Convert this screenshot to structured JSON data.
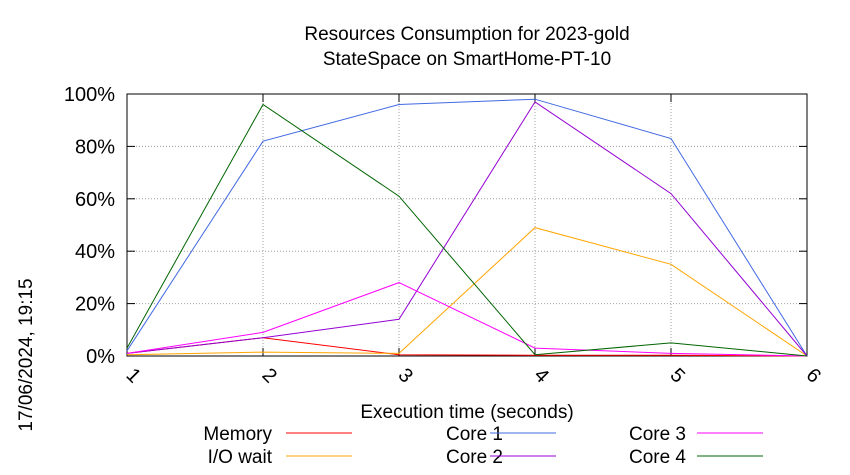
{
  "chart_data": {
    "type": "line",
    "title_lines": [
      "Resources Consumption for 2023-gold",
      "StateSpace on SmartHome-PT-10"
    ],
    "xlabel": "Execution time (seconds)",
    "ylabel": "",
    "side_label": "17/06/2024, 19:15",
    "x": [
      1,
      2,
      3,
      4,
      5,
      6
    ],
    "xlim": [
      1,
      6
    ],
    "ylim": [
      0,
      100
    ],
    "y_ticks": [
      "0%",
      "20%",
      "40%",
      "60%",
      "80%",
      "100%"
    ],
    "x_ticks": [
      "1",
      "2",
      "3",
      "4",
      "5",
      "6"
    ],
    "grid": true,
    "legend_position": "bottom",
    "series": [
      {
        "name": "Memory",
        "color": "#ff0000",
        "values": [
          1,
          7,
          0.5,
          0.3,
          0.3,
          0
        ]
      },
      {
        "name": "I/O wait",
        "color": "#ffa500",
        "values": [
          0.5,
          1.5,
          1,
          49,
          35,
          0
        ]
      },
      {
        "name": "Core 1",
        "color": "#4169e1",
        "values": [
          2,
          82,
          96,
          98,
          83,
          0
        ]
      },
      {
        "name": "Core 2",
        "color": "#9400d3",
        "values": [
          1,
          7,
          14,
          97,
          62,
          0
        ]
      },
      {
        "name": "Core 3",
        "color": "#ff00ff",
        "values": [
          1,
          9,
          28,
          3,
          1,
          0
        ]
      },
      {
        "name": "Core 4",
        "color": "#006400",
        "values": [
          3,
          96,
          61,
          0.5,
          5,
          0
        ]
      }
    ]
  }
}
